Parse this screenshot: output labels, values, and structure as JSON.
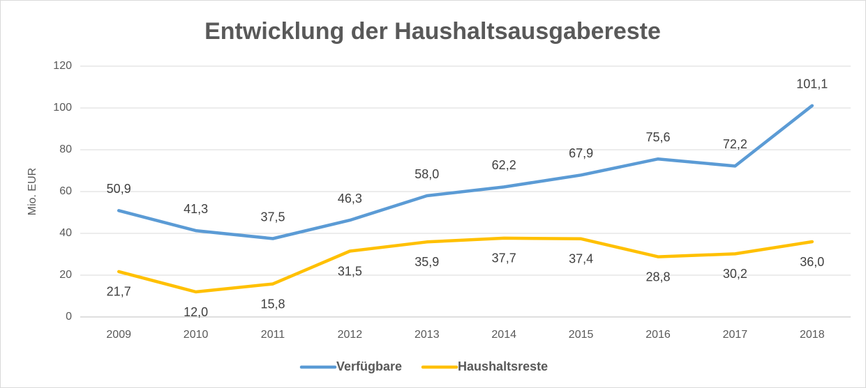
{
  "chart_data": {
    "type": "line",
    "title": "Entwicklung der Haushaltsausgabereste",
    "y_label": "Mio. EUR",
    "categories": [
      "2009",
      "2010",
      "2011",
      "2012",
      "2013",
      "2014",
      "2015",
      "2016",
      "2017",
      "2018"
    ],
    "series": [
      {
        "name": "Verfügbare",
        "color": "#5b9bd5",
        "values": [
          50.9,
          41.3,
          37.5,
          46.3,
          58.0,
          62.2,
          67.9,
          75.6,
          72.2,
          101.1
        ],
        "value_labels": [
          "50,9",
          "41,3",
          "37,5",
          "46,3",
          "58,0",
          "62,2",
          "67,9",
          "75,6",
          "72,2",
          "101,1"
        ]
      },
      {
        "name": "Haushaltsreste",
        "color": "#ffc000",
        "values": [
          21.7,
          12.0,
          15.8,
          31.5,
          35.9,
          37.7,
          37.4,
          28.8,
          30.2,
          36.0
        ],
        "value_labels": [
          "21,7",
          "12,0",
          "15,8",
          "31,5",
          "35,9",
          "37,7",
          "37,4",
          "28,8",
          "30,2",
          "36,0"
        ]
      }
    ],
    "ylim": [
      0,
      120
    ],
    "yticks": [
      0,
      20,
      40,
      60,
      80,
      100,
      120
    ],
    "grid": true,
    "legend": "bottom"
  }
}
